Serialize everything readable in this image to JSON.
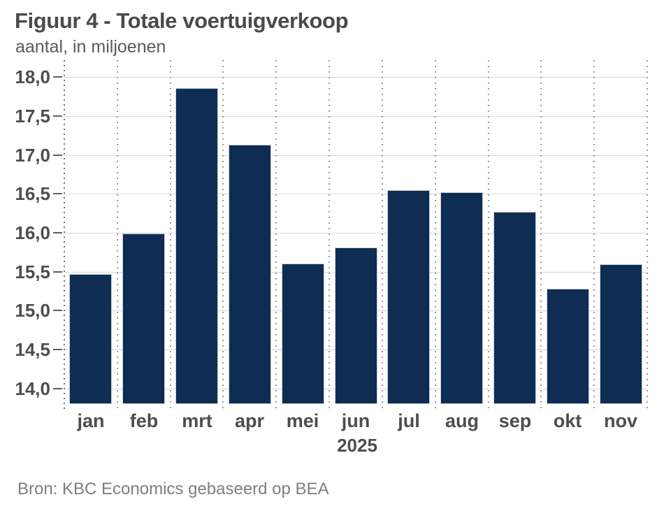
{
  "figure": {
    "title": "Figuur 4 - Totale voertuigverkoop",
    "subtitle": "aantal, in miljoenen",
    "source": "Bron: KBC Economics gebaseerd op BEA"
  },
  "chart_data": {
    "type": "bar",
    "title": "Figuur 4 - Totale voertuigverkoop",
    "subtitle": "aantal, in miljoenen",
    "categories": [
      "jan",
      "feb",
      "mrt",
      "apr",
      "mei",
      "jun",
      "jul",
      "aug",
      "sep",
      "okt",
      "nov"
    ],
    "values": [
      15.47,
      15.99,
      17.86,
      17.13,
      15.61,
      15.81,
      16.55,
      16.52,
      16.27,
      15.28,
      15.6
    ],
    "x_axis_label": "2025",
    "xlabel": "2025",
    "ylabel": "aantal, in miljoenen",
    "y_ticks": [
      18.0,
      17.5,
      17.0,
      16.5,
      16.0,
      15.5,
      15.0,
      14.5,
      14.0
    ],
    "y_tick_labels": [
      "18,0",
      "17,5",
      "17,0",
      "16,5",
      "16,0",
      "15,5",
      "15,0",
      "14,5",
      "14,0"
    ],
    "ylim": [
      13.8,
      18.22
    ],
    "decimal_separator": ",",
    "legend": "none",
    "grid": "horizontal solid gridlines + vertical dotted category separators",
    "bar_color": "#0f2d52",
    "bar_edge_color": "#c9d0d9",
    "gridline_color": "#d8d8d8",
    "separator_dot_color": "#9c9c9c",
    "axis_dot_color": "#6f6f6f",
    "tick_dash_color": "#5f5f5f",
    "label_color": "#4d4d4d",
    "source_color": "#7f7f7f"
  }
}
